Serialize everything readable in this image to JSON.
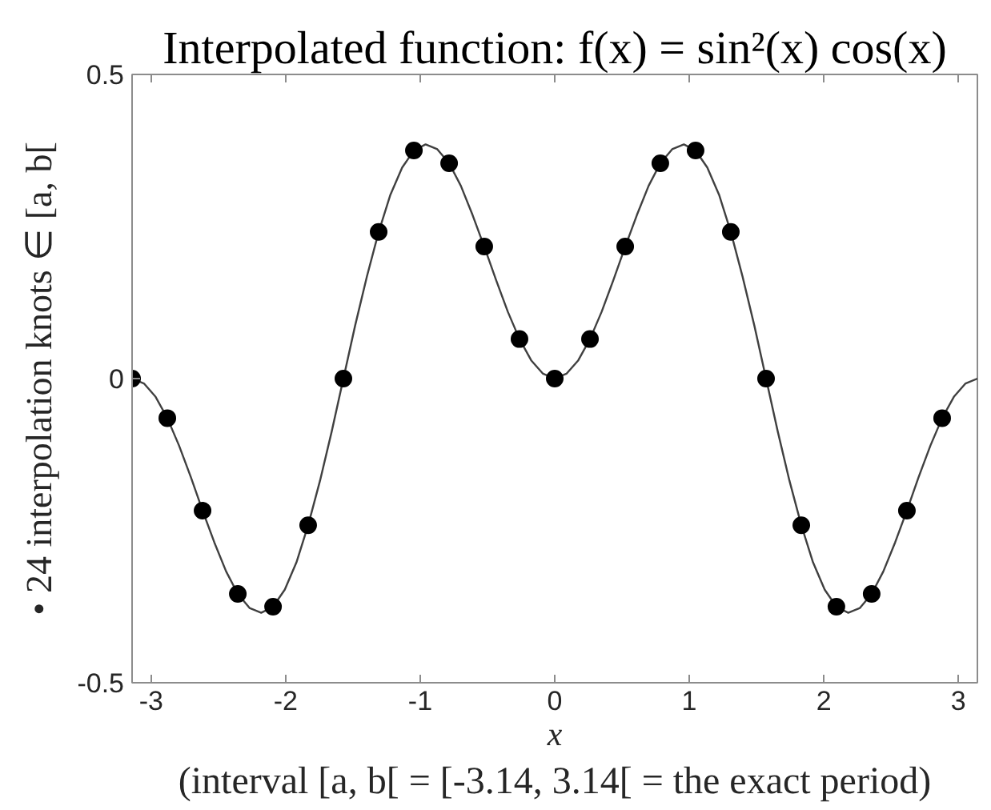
{
  "chart_data": {
    "type": "line",
    "title": "Interpolated function: f(x) = sin²(x) cos(x)",
    "xlabel": "x",
    "ylabel": "• 24 interpolation knots ∈ [a, b[",
    "annotations": [
      "(interval [a, b[ = [-3.14, 3.14[ = the exact period)"
    ],
    "xlim": [
      -3.142,
      3.142
    ],
    "ylim": [
      -0.5,
      0.5
    ],
    "xticks": [
      -3,
      -2,
      -1,
      0,
      1,
      2,
      3
    ],
    "yticks": [
      -0.5,
      0,
      0.5
    ],
    "grid": false,
    "series": [
      {
        "color": "#404040",
        "line_style": "solid",
        "marker": "none",
        "x": [
          -3.142,
          -3.054,
          -2.967,
          -2.88,
          -2.793,
          -2.705,
          -2.618,
          -2.531,
          -2.443,
          -2.356,
          -2.269,
          -2.182,
          -2.094,
          -2.007,
          -1.92,
          -1.833,
          -1.745,
          -1.658,
          -1.571,
          -1.484,
          -1.396,
          -1.309,
          -1.222,
          -1.134,
          -1.047,
          -0.96,
          -0.873,
          -0.785,
          -0.698,
          -0.611,
          -0.524,
          -0.436,
          -0.349,
          -0.262,
          -0.175,
          -0.087,
          0,
          0.087,
          0.175,
          0.262,
          0.349,
          0.436,
          0.524,
          0.611,
          0.698,
          0.785,
          0.873,
          0.96,
          1.047,
          1.134,
          1.222,
          1.309,
          1.396,
          1.484,
          1.571,
          1.658,
          1.745,
          1.833,
          1.92,
          2.007,
          2.094,
          2.182,
          2.269,
          2.356,
          2.443,
          2.531,
          2.618,
          2.705,
          2.793,
          2.88,
          2.967,
          3.054,
          3.142
        ],
        "values": [
          0,
          -0.008,
          -0.03,
          -0.065,
          -0.11,
          -0.162,
          -0.217,
          -0.269,
          -0.317,
          -0.354,
          -0.377,
          -0.385,
          -0.375,
          -0.347,
          -0.302,
          -0.241,
          -0.168,
          -0.087,
          0,
          0.087,
          0.168,
          0.241,
          0.302,
          0.347,
          0.375,
          0.385,
          0.377,
          0.354,
          0.317,
          0.269,
          0.217,
          0.162,
          0.11,
          0.065,
          0.03,
          0.008,
          0,
          0.008,
          0.03,
          0.065,
          0.11,
          0.162,
          0.217,
          0.269,
          0.317,
          0.354,
          0.377,
          0.385,
          0.375,
          0.347,
          0.302,
          0.241,
          0.168,
          0.087,
          0,
          -0.087,
          -0.168,
          -0.241,
          -0.302,
          -0.347,
          -0.375,
          -0.385,
          -0.377,
          -0.354,
          -0.317,
          -0.269,
          -0.217,
          -0.162,
          -0.11,
          -0.065,
          -0.03,
          -0.008,
          0
        ]
      },
      {
        "type": "scatter",
        "color": "#000000",
        "marker": "circle",
        "x": [
          -3.142,
          -2.88,
          -2.618,
          -2.356,
          -2.094,
          -1.833,
          -1.571,
          -1.309,
          -1.047,
          -0.785,
          -0.524,
          -0.262,
          0,
          0.262,
          0.524,
          0.785,
          1.047,
          1.309,
          1.571,
          1.833,
          2.094,
          2.356,
          2.618,
          2.88
        ],
        "values": [
          0,
          -0.065,
          -0.217,
          -0.354,
          -0.375,
          -0.241,
          0,
          0.241,
          0.375,
          0.354,
          0.217,
          0.065,
          0,
          0.065,
          0.217,
          0.354,
          0.375,
          0.241,
          0,
          -0.241,
          -0.375,
          -0.354,
          -0.217,
          -0.065
        ]
      }
    ]
  }
}
